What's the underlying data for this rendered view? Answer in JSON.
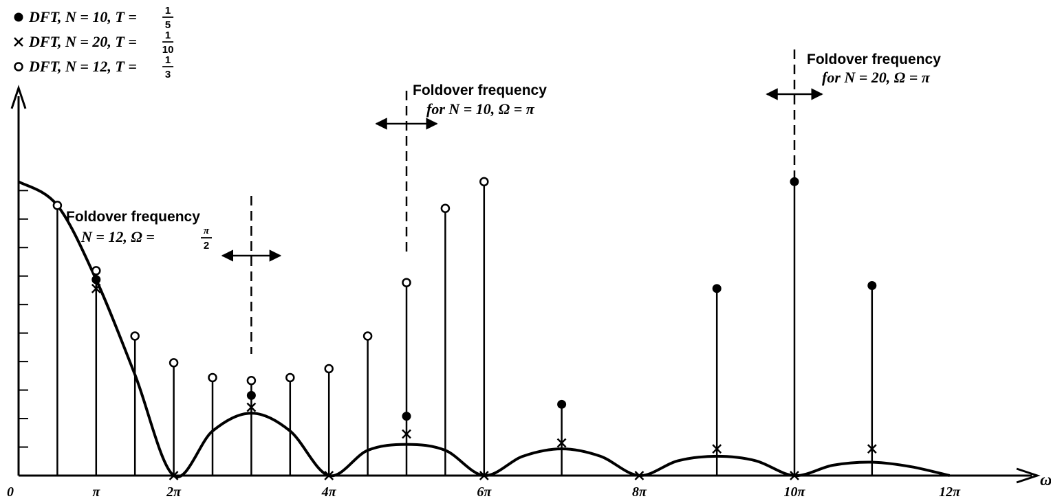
{
  "chart_data": {
    "type": "scatter",
    "xlabel": "ω",
    "x_tick_labels": [
      "0",
      "π",
      "2π",
      "4π",
      "6π",
      "8π",
      "10π",
      "12π"
    ],
    "x_ticks_in_pi": [
      0,
      1,
      2,
      4,
      6,
      8,
      10,
      12
    ],
    "xlim_in_pi": [
      0,
      12.4
    ],
    "ylim": [
      0,
      1.0
    ],
    "y_tick_count": 10,
    "grid": false,
    "legend_placement": "top-left",
    "legend": [
      {
        "marker": "filled-circle",
        "label": "DFT, N = 10, T = 1/5",
        "prefix": "DFT, N = 10, T = ",
        "frac_num": "1",
        "frac_den": "5"
      },
      {
        "marker": "cross",
        "label": "DFT, N = 20, T = 1/10",
        "prefix": "DFT, N = 20, T = ",
        "frac_num": "1",
        "frac_den": "10"
      },
      {
        "marker": "open-circle",
        "label": "DFT, N = 12, T = 1/3",
        "prefix": "DFT, N = 12, T = ",
        "frac_num": "1",
        "frac_den": "3"
      }
    ],
    "continuous_curve": {
      "description": "|X(ω)| envelope",
      "points": [
        [
          0,
          0.99
        ],
        [
          0.5,
          0.91
        ],
        [
          1,
          0.66
        ],
        [
          1.5,
          0.34
        ],
        [
          2,
          0.0
        ],
        [
          2.5,
          0.15
        ],
        [
          3,
          0.21
        ],
        [
          3.5,
          0.15
        ],
        [
          4,
          0.0
        ],
        [
          4.5,
          0.085
        ],
        [
          5,
          0.105
        ],
        [
          5.5,
          0.085
        ],
        [
          6,
          0.0
        ],
        [
          6.5,
          0.065
        ],
        [
          7,
          0.09
        ],
        [
          7.5,
          0.065
        ],
        [
          8,
          0.0
        ],
        [
          8.5,
          0.05
        ],
        [
          9,
          0.065
        ],
        [
          9.5,
          0.05
        ],
        [
          10,
          0.0
        ],
        [
          10.5,
          0.035
        ],
        [
          11,
          0.045
        ],
        [
          11.5,
          0.03
        ],
        [
          12,
          0.0
        ]
      ]
    },
    "series": [
      {
        "marker": "filled-circle",
        "x_in_pi": [
          1,
          3,
          5,
          7,
          10,
          9,
          11
        ],
        "y": [
          0.66,
          0.27,
          0.2,
          0.24,
          0.99,
          0.63,
          0.64
        ]
      },
      {
        "marker": "cross",
        "x_in_pi": [
          1,
          2,
          3,
          4,
          5,
          6,
          7,
          8,
          9,
          10,
          11
        ],
        "y": [
          0.63,
          0.0,
          0.23,
          0.0,
          0.14,
          0.0,
          0.11,
          0.0,
          0.09,
          0.0,
          0.09
        ]
      },
      {
        "marker": "open-circle",
        "x_in_pi": [
          0.5,
          1,
          1.5,
          2,
          2.5,
          3,
          3.5,
          4,
          4.5,
          5,
          5.5,
          6
        ],
        "y": [
          0.91,
          0.69,
          0.47,
          0.38,
          0.33,
          0.32,
          0.33,
          0.36,
          0.47,
          0.65,
          0.9,
          0.99
        ]
      }
    ],
    "stems_x_in_pi": [
      0.5,
      1,
      1.5,
      2,
      2.5,
      3,
      3.5,
      4,
      4.5,
      5,
      5.5,
      6,
      7,
      9,
      10,
      11
    ],
    "annotations": [
      {
        "x_in_pi": 3,
        "line1": "Foldover frequency",
        "prefix": "N = 12, Ω = ",
        "frac_num": "π",
        "frac_den": "2"
      },
      {
        "x_in_pi": 5,
        "line1": "Foldover frequency",
        "line2": "for N = 10, Ω = π"
      },
      {
        "x_in_pi": 10,
        "line1": "Foldover frequency",
        "line2": "for N = 20, Ω = π"
      }
    ]
  }
}
